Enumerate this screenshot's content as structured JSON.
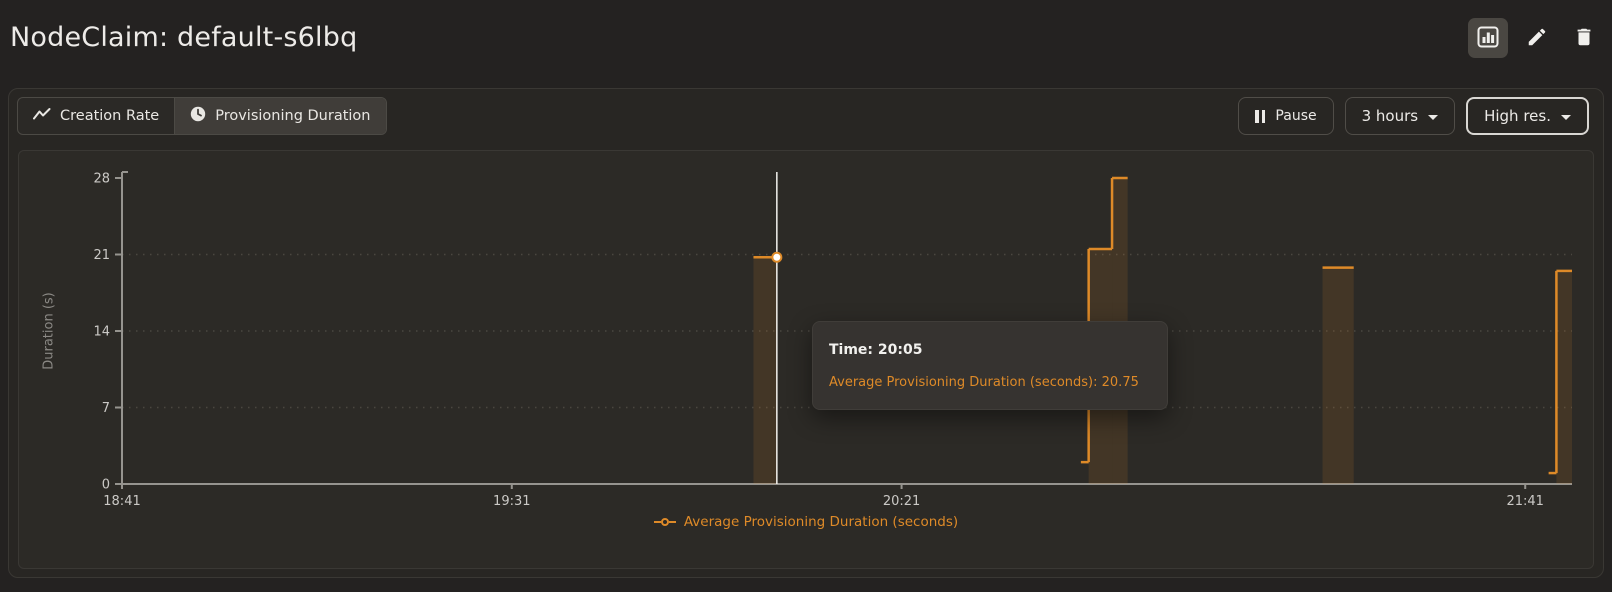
{
  "header": {
    "title": "NodeClaim: default-s6lbq"
  },
  "toolbar": {
    "tabs": [
      {
        "label": "Creation Rate",
        "icon": "trend-line-icon",
        "active": false
      },
      {
        "label": "Provisioning Duration",
        "icon": "clock-icon",
        "active": true
      }
    ],
    "pause_label": "Pause",
    "range_label": "3 hours",
    "resolution_label": "High res."
  },
  "chart": {
    "tooltip": {
      "line1": "Time: 20:05",
      "line2": "Average Provisioning Duration (seconds): 20.75"
    },
    "legend": {
      "label": "Average Provisioning Duration (seconds)"
    }
  },
  "colors": {
    "series_orange": "#de8a28",
    "axis_gray": "#96948f",
    "tick_label_gray": "#cbc9c6",
    "grid_dot_gray": "#4a4740",
    "crosshair_white": "#f3f2ef"
  },
  "chart_data": {
    "type": "step-area",
    "title": "",
    "xlabel": "",
    "ylabel": "Duration (s)",
    "ylim": [
      0,
      28
    ],
    "yticks": [
      0,
      7,
      14,
      21,
      28
    ],
    "x_range": [
      "18:41",
      "21:47"
    ],
    "xticks": [
      "18:41",
      "19:31",
      "20:21",
      "21:41"
    ],
    "grid": "horizontal-dotted",
    "legend_position": "bottom-center",
    "series": [
      {
        "name": "Average Provisioning Duration (seconds)",
        "color": "#de8a28",
        "style": "step",
        "segments": [
          {
            "from": "20:02",
            "to": "20:05",
            "value": 20.75,
            "fill": true,
            "connect_next": false
          },
          {
            "from": "20:44",
            "to": "20:45",
            "value": 2,
            "fill": false,
            "connect_next": true
          },
          {
            "from": "20:45",
            "to": "20:48",
            "value": 21.5,
            "fill": true,
            "connect_next": true
          },
          {
            "from": "20:48",
            "to": "20:50",
            "value": 28,
            "fill": true,
            "connect_next": false
          },
          {
            "from": "21:15",
            "to": "21:19",
            "value": 19.8,
            "fill": true,
            "connect_next": false
          },
          {
            "from": "21:44",
            "to": "21:45",
            "value": 1,
            "fill": false,
            "connect_next": true
          },
          {
            "from": "21:45",
            "to": "21:47",
            "value": 19.5,
            "fill": true,
            "connect_next": false
          }
        ]
      }
    ],
    "hover_point": {
      "time": "20:05",
      "value": 20.75
    }
  }
}
